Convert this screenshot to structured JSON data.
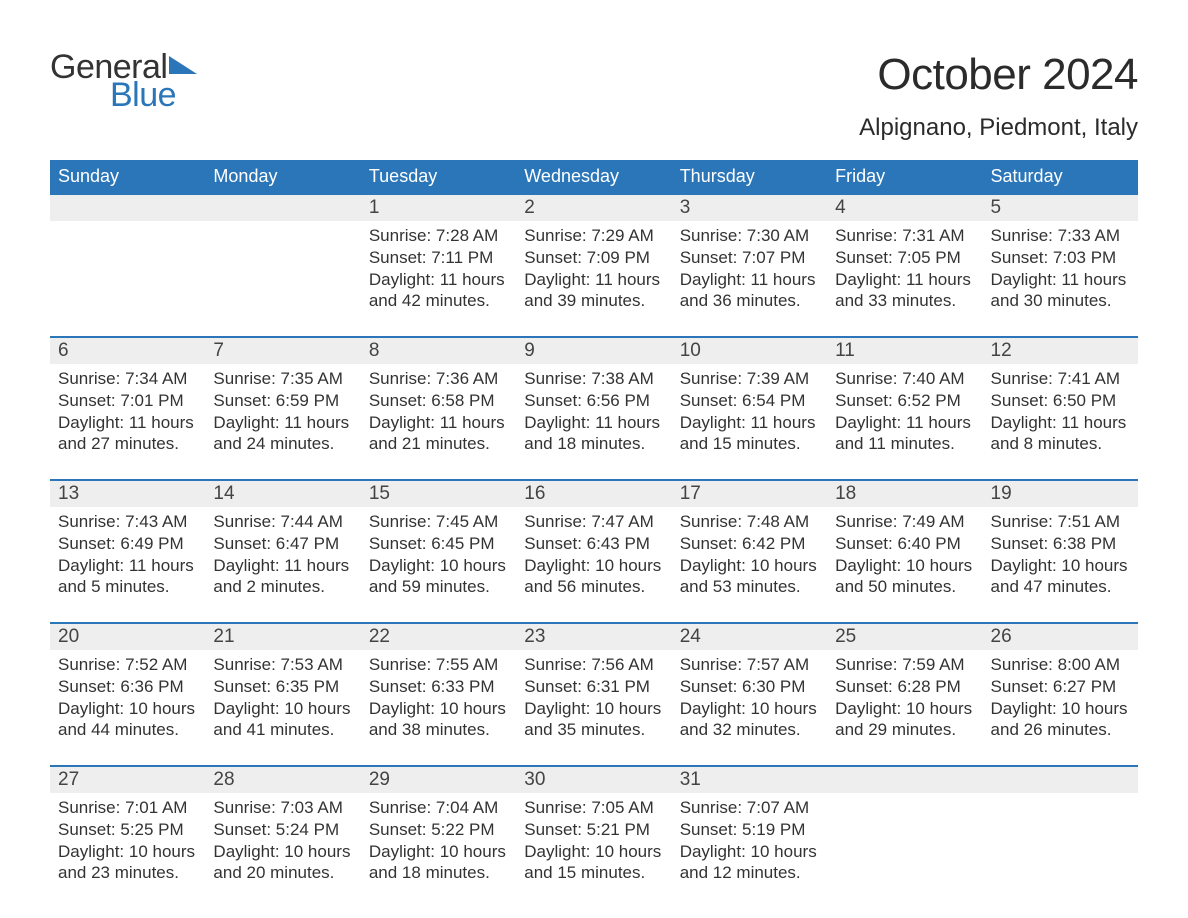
{
  "brand": {
    "general": "General",
    "blue": "Blue",
    "logo_color_dark": "#333333",
    "logo_color_blue": "#2b76b9",
    "tri_color": "#2b76b9"
  },
  "title": "October 2024",
  "location": "Alpignano, Piedmont, Italy",
  "colors": {
    "header_bg": "#2b76b9",
    "header_text": "#ffffff",
    "daynum_bg": "#eeeeee",
    "week_border": "#2b76b9",
    "body_text": "#333333",
    "page_bg": "#ffffff"
  },
  "fonts": {
    "title_size_pt": 33,
    "location_size_pt": 18,
    "dayhead_size_pt": 14,
    "daynum_size_pt": 14,
    "body_size_pt": 13
  },
  "day_headers": [
    "Sunday",
    "Monday",
    "Tuesday",
    "Wednesday",
    "Thursday",
    "Friday",
    "Saturday"
  ],
  "weeks": [
    [
      null,
      null,
      {
        "n": "1",
        "sunrise": "Sunrise: 7:28 AM",
        "sunset": "Sunset: 7:11 PM",
        "dl1": "Daylight: 11 hours",
        "dl2": "and 42 minutes."
      },
      {
        "n": "2",
        "sunrise": "Sunrise: 7:29 AM",
        "sunset": "Sunset: 7:09 PM",
        "dl1": "Daylight: 11 hours",
        "dl2": "and 39 minutes."
      },
      {
        "n": "3",
        "sunrise": "Sunrise: 7:30 AM",
        "sunset": "Sunset: 7:07 PM",
        "dl1": "Daylight: 11 hours",
        "dl2": "and 36 minutes."
      },
      {
        "n": "4",
        "sunrise": "Sunrise: 7:31 AM",
        "sunset": "Sunset: 7:05 PM",
        "dl1": "Daylight: 11 hours",
        "dl2": "and 33 minutes."
      },
      {
        "n": "5",
        "sunrise": "Sunrise: 7:33 AM",
        "sunset": "Sunset: 7:03 PM",
        "dl1": "Daylight: 11 hours",
        "dl2": "and 30 minutes."
      }
    ],
    [
      {
        "n": "6",
        "sunrise": "Sunrise: 7:34 AM",
        "sunset": "Sunset: 7:01 PM",
        "dl1": "Daylight: 11 hours",
        "dl2": "and 27 minutes."
      },
      {
        "n": "7",
        "sunrise": "Sunrise: 7:35 AM",
        "sunset": "Sunset: 6:59 PM",
        "dl1": "Daylight: 11 hours",
        "dl2": "and 24 minutes."
      },
      {
        "n": "8",
        "sunrise": "Sunrise: 7:36 AM",
        "sunset": "Sunset: 6:58 PM",
        "dl1": "Daylight: 11 hours",
        "dl2": "and 21 minutes."
      },
      {
        "n": "9",
        "sunrise": "Sunrise: 7:38 AM",
        "sunset": "Sunset: 6:56 PM",
        "dl1": "Daylight: 11 hours",
        "dl2": "and 18 minutes."
      },
      {
        "n": "10",
        "sunrise": "Sunrise: 7:39 AM",
        "sunset": "Sunset: 6:54 PM",
        "dl1": "Daylight: 11 hours",
        "dl2": "and 15 minutes."
      },
      {
        "n": "11",
        "sunrise": "Sunrise: 7:40 AM",
        "sunset": "Sunset: 6:52 PM",
        "dl1": "Daylight: 11 hours",
        "dl2": "and 11 minutes."
      },
      {
        "n": "12",
        "sunrise": "Sunrise: 7:41 AM",
        "sunset": "Sunset: 6:50 PM",
        "dl1": "Daylight: 11 hours",
        "dl2": "and 8 minutes."
      }
    ],
    [
      {
        "n": "13",
        "sunrise": "Sunrise: 7:43 AM",
        "sunset": "Sunset: 6:49 PM",
        "dl1": "Daylight: 11 hours",
        "dl2": "and 5 minutes."
      },
      {
        "n": "14",
        "sunrise": "Sunrise: 7:44 AM",
        "sunset": "Sunset: 6:47 PM",
        "dl1": "Daylight: 11 hours",
        "dl2": "and 2 minutes."
      },
      {
        "n": "15",
        "sunrise": "Sunrise: 7:45 AM",
        "sunset": "Sunset: 6:45 PM",
        "dl1": "Daylight: 10 hours",
        "dl2": "and 59 minutes."
      },
      {
        "n": "16",
        "sunrise": "Sunrise: 7:47 AM",
        "sunset": "Sunset: 6:43 PM",
        "dl1": "Daylight: 10 hours",
        "dl2": "and 56 minutes."
      },
      {
        "n": "17",
        "sunrise": "Sunrise: 7:48 AM",
        "sunset": "Sunset: 6:42 PM",
        "dl1": "Daylight: 10 hours",
        "dl2": "and 53 minutes."
      },
      {
        "n": "18",
        "sunrise": "Sunrise: 7:49 AM",
        "sunset": "Sunset: 6:40 PM",
        "dl1": "Daylight: 10 hours",
        "dl2": "and 50 minutes."
      },
      {
        "n": "19",
        "sunrise": "Sunrise: 7:51 AM",
        "sunset": "Sunset: 6:38 PM",
        "dl1": "Daylight: 10 hours",
        "dl2": "and 47 minutes."
      }
    ],
    [
      {
        "n": "20",
        "sunrise": "Sunrise: 7:52 AM",
        "sunset": "Sunset: 6:36 PM",
        "dl1": "Daylight: 10 hours",
        "dl2": "and 44 minutes."
      },
      {
        "n": "21",
        "sunrise": "Sunrise: 7:53 AM",
        "sunset": "Sunset: 6:35 PM",
        "dl1": "Daylight: 10 hours",
        "dl2": "and 41 minutes."
      },
      {
        "n": "22",
        "sunrise": "Sunrise: 7:55 AM",
        "sunset": "Sunset: 6:33 PM",
        "dl1": "Daylight: 10 hours",
        "dl2": "and 38 minutes."
      },
      {
        "n": "23",
        "sunrise": "Sunrise: 7:56 AM",
        "sunset": "Sunset: 6:31 PM",
        "dl1": "Daylight: 10 hours",
        "dl2": "and 35 minutes."
      },
      {
        "n": "24",
        "sunrise": "Sunrise: 7:57 AM",
        "sunset": "Sunset: 6:30 PM",
        "dl1": "Daylight: 10 hours",
        "dl2": "and 32 minutes."
      },
      {
        "n": "25",
        "sunrise": "Sunrise: 7:59 AM",
        "sunset": "Sunset: 6:28 PM",
        "dl1": "Daylight: 10 hours",
        "dl2": "and 29 minutes."
      },
      {
        "n": "26",
        "sunrise": "Sunrise: 8:00 AM",
        "sunset": "Sunset: 6:27 PM",
        "dl1": "Daylight: 10 hours",
        "dl2": "and 26 minutes."
      }
    ],
    [
      {
        "n": "27",
        "sunrise": "Sunrise: 7:01 AM",
        "sunset": "Sunset: 5:25 PM",
        "dl1": "Daylight: 10 hours",
        "dl2": "and 23 minutes."
      },
      {
        "n": "28",
        "sunrise": "Sunrise: 7:03 AM",
        "sunset": "Sunset: 5:24 PM",
        "dl1": "Daylight: 10 hours",
        "dl2": "and 20 minutes."
      },
      {
        "n": "29",
        "sunrise": "Sunrise: 7:04 AM",
        "sunset": "Sunset: 5:22 PM",
        "dl1": "Daylight: 10 hours",
        "dl2": "and 18 minutes."
      },
      {
        "n": "30",
        "sunrise": "Sunrise: 7:05 AM",
        "sunset": "Sunset: 5:21 PM",
        "dl1": "Daylight: 10 hours",
        "dl2": "and 15 minutes."
      },
      {
        "n": "31",
        "sunrise": "Sunrise: 7:07 AM",
        "sunset": "Sunset: 5:19 PM",
        "dl1": "Daylight: 10 hours",
        "dl2": "and 12 minutes."
      },
      null,
      null
    ]
  ]
}
